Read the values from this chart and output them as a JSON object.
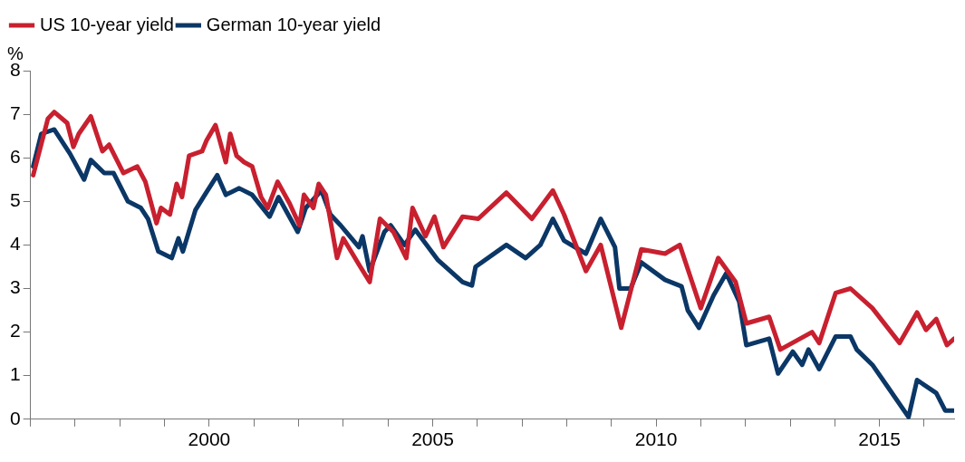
{
  "chart_data": {
    "type": "line",
    "ylabel": "%",
    "legend": "top left",
    "grid": false,
    "marker": "none",
    "line_style": "solid",
    "xlim": [
      1996,
      2016.67
    ],
    "ylim": [
      0,
      8
    ],
    "yticks": [
      0,
      1,
      2,
      3,
      4,
      5,
      6,
      7,
      8
    ],
    "xticks": [
      {
        "value": 1996,
        "label": null
      },
      {
        "value": 1997,
        "label": null
      },
      {
        "value": 1998,
        "label": null
      },
      {
        "value": 1999,
        "label": null
      },
      2000,
      {
        "value": 2001,
        "label": null
      },
      {
        "value": 2002,
        "label": null
      },
      {
        "value": 2003,
        "label": null
      },
      {
        "value": 2004,
        "label": null
      },
      2005,
      {
        "value": 2006,
        "label": null
      },
      {
        "value": 2007,
        "label": null
      },
      {
        "value": 2008,
        "label": null
      },
      {
        "value": 2009,
        "label": null
      },
      2010,
      {
        "value": 2011,
        "label": null
      },
      {
        "value": 2012,
        "label": null
      },
      {
        "value": 2013,
        "label": null
      },
      {
        "value": 2014,
        "label": null
      },
      2015,
      {
        "value": 2016,
        "label": null
      }
    ],
    "series": [
      {
        "name": "US 10-year yield",
        "color": "#c8202f",
        "x": [
          1996.06,
          1996.39,
          1996.53,
          1996.82,
          1996.96,
          1997.08,
          1997.35,
          1997.61,
          1997.76,
          1998.08,
          1998.39,
          1998.57,
          1998.82,
          1998.92,
          1999.12,
          1999.27,
          1999.39,
          1999.55,
          1999.84,
          1999.94,
          2000.14,
          2000.37,
          2000.47,
          2000.61,
          2000.78,
          2000.96,
          2001.16,
          2001.31,
          2001.53,
          2001.8,
          2002.02,
          2002.12,
          2002.33,
          2002.45,
          2002.61,
          2002.86,
          2003,
          2003.35,
          2003.59,
          2003.82,
          2004.12,
          2004.41,
          2004.55,
          2004.84,
          2005.04,
          2005.24,
          2005.67,
          2006.02,
          2006.65,
          2007.22,
          2007.69,
          2007.94,
          2008.43,
          2008.76,
          2009.22,
          2009.67,
          2010.2,
          2010.53,
          2011,
          2011.39,
          2011.78,
          2012.02,
          2012.53,
          2012.78,
          2013.49,
          2013.65,
          2014.02,
          2014.35,
          2014.84,
          2015.45,
          2015.84,
          2016.04,
          2016.27,
          2016.51,
          2016.67
        ],
        "values": [
          5.6,
          6.9,
          7.05,
          6.8,
          6.25,
          6.55,
          6.95,
          6.15,
          6.3,
          5.65,
          5.8,
          5.45,
          4.5,
          4.85,
          4.7,
          5.4,
          5.1,
          6.05,
          6.15,
          6.4,
          6.75,
          5.9,
          6.55,
          6.05,
          5.9,
          5.8,
          5.1,
          4.85,
          5.45,
          4.95,
          4.45,
          5.15,
          4.85,
          5.4,
          5.15,
          3.7,
          4.15,
          3.55,
          3.15,
          4.6,
          4.3,
          3.7,
          4.85,
          4.2,
          4.65,
          3.95,
          4.65,
          4.6,
          5.2,
          4.6,
          5.25,
          4.7,
          3.4,
          4.0,
          2.1,
          3.9,
          3.8,
          4.0,
          2.55,
          3.7,
          3.15,
          2.2,
          2.35,
          1.6,
          2.0,
          1.75,
          2.9,
          3.0,
          2.55,
          1.75,
          2.45,
          2.05,
          2.3,
          1.7,
          1.85
        ]
      },
      {
        "name": "German 10-year yield",
        "color": "#0b3766",
        "x": [
          1996.06,
          1996.24,
          1996.53,
          1996.88,
          1997.2,
          1997.35,
          1997.65,
          1997.86,
          1998.18,
          1998.47,
          1998.63,
          1998.86,
          1999.16,
          1999.31,
          1999.41,
          1999.69,
          1999.9,
          2000.18,
          2000.37,
          2000.67,
          2000.96,
          2001.35,
          2001.55,
          2001.98,
          2002.16,
          2002.51,
          2002.71,
          2002.94,
          2003.35,
          2003.43,
          2003.59,
          2003.92,
          2004.06,
          2004.37,
          2004.61,
          2005.12,
          2005.67,
          2005.88,
          2005.96,
          2006.65,
          2007.08,
          2007.41,
          2007.69,
          2007.94,
          2008.43,
          2008.76,
          2009.08,
          2009.18,
          2009.43,
          2009.67,
          2010.2,
          2010.57,
          2010.71,
          2010.96,
          2011.29,
          2011.57,
          2011.86,
          2012.02,
          2012.53,
          2012.73,
          2013.06,
          2013.27,
          2013.41,
          2013.65,
          2014.02,
          2014.35,
          2014.49,
          2014.84,
          2015.18,
          2015.65,
          2015.84,
          2016.27,
          2016.47,
          2016.67
        ],
        "values": [
          5.8,
          6.55,
          6.65,
          6.1,
          5.5,
          5.95,
          5.65,
          5.65,
          5.0,
          4.85,
          4.6,
          3.85,
          3.7,
          4.15,
          3.85,
          4.8,
          5.15,
          5.6,
          5.15,
          5.3,
          5.15,
          4.65,
          5.1,
          4.3,
          4.85,
          5.25,
          4.7,
          4.45,
          3.95,
          4.2,
          3.4,
          4.3,
          4.45,
          4.0,
          4.35,
          3.65,
          3.15,
          3.07,
          3.5,
          4.0,
          3.7,
          4.0,
          4.6,
          4.1,
          3.8,
          4.6,
          3.95,
          3.0,
          3.0,
          3.6,
          3.2,
          3.05,
          2.5,
          2.1,
          2.85,
          3.35,
          2.7,
          1.7,
          1.85,
          1.05,
          1.55,
          1.25,
          1.6,
          1.15,
          1.9,
          1.9,
          1.6,
          1.25,
          0.75,
          0.05,
          0.9,
          0.6,
          0.2,
          0.2
        ]
      }
    ]
  }
}
